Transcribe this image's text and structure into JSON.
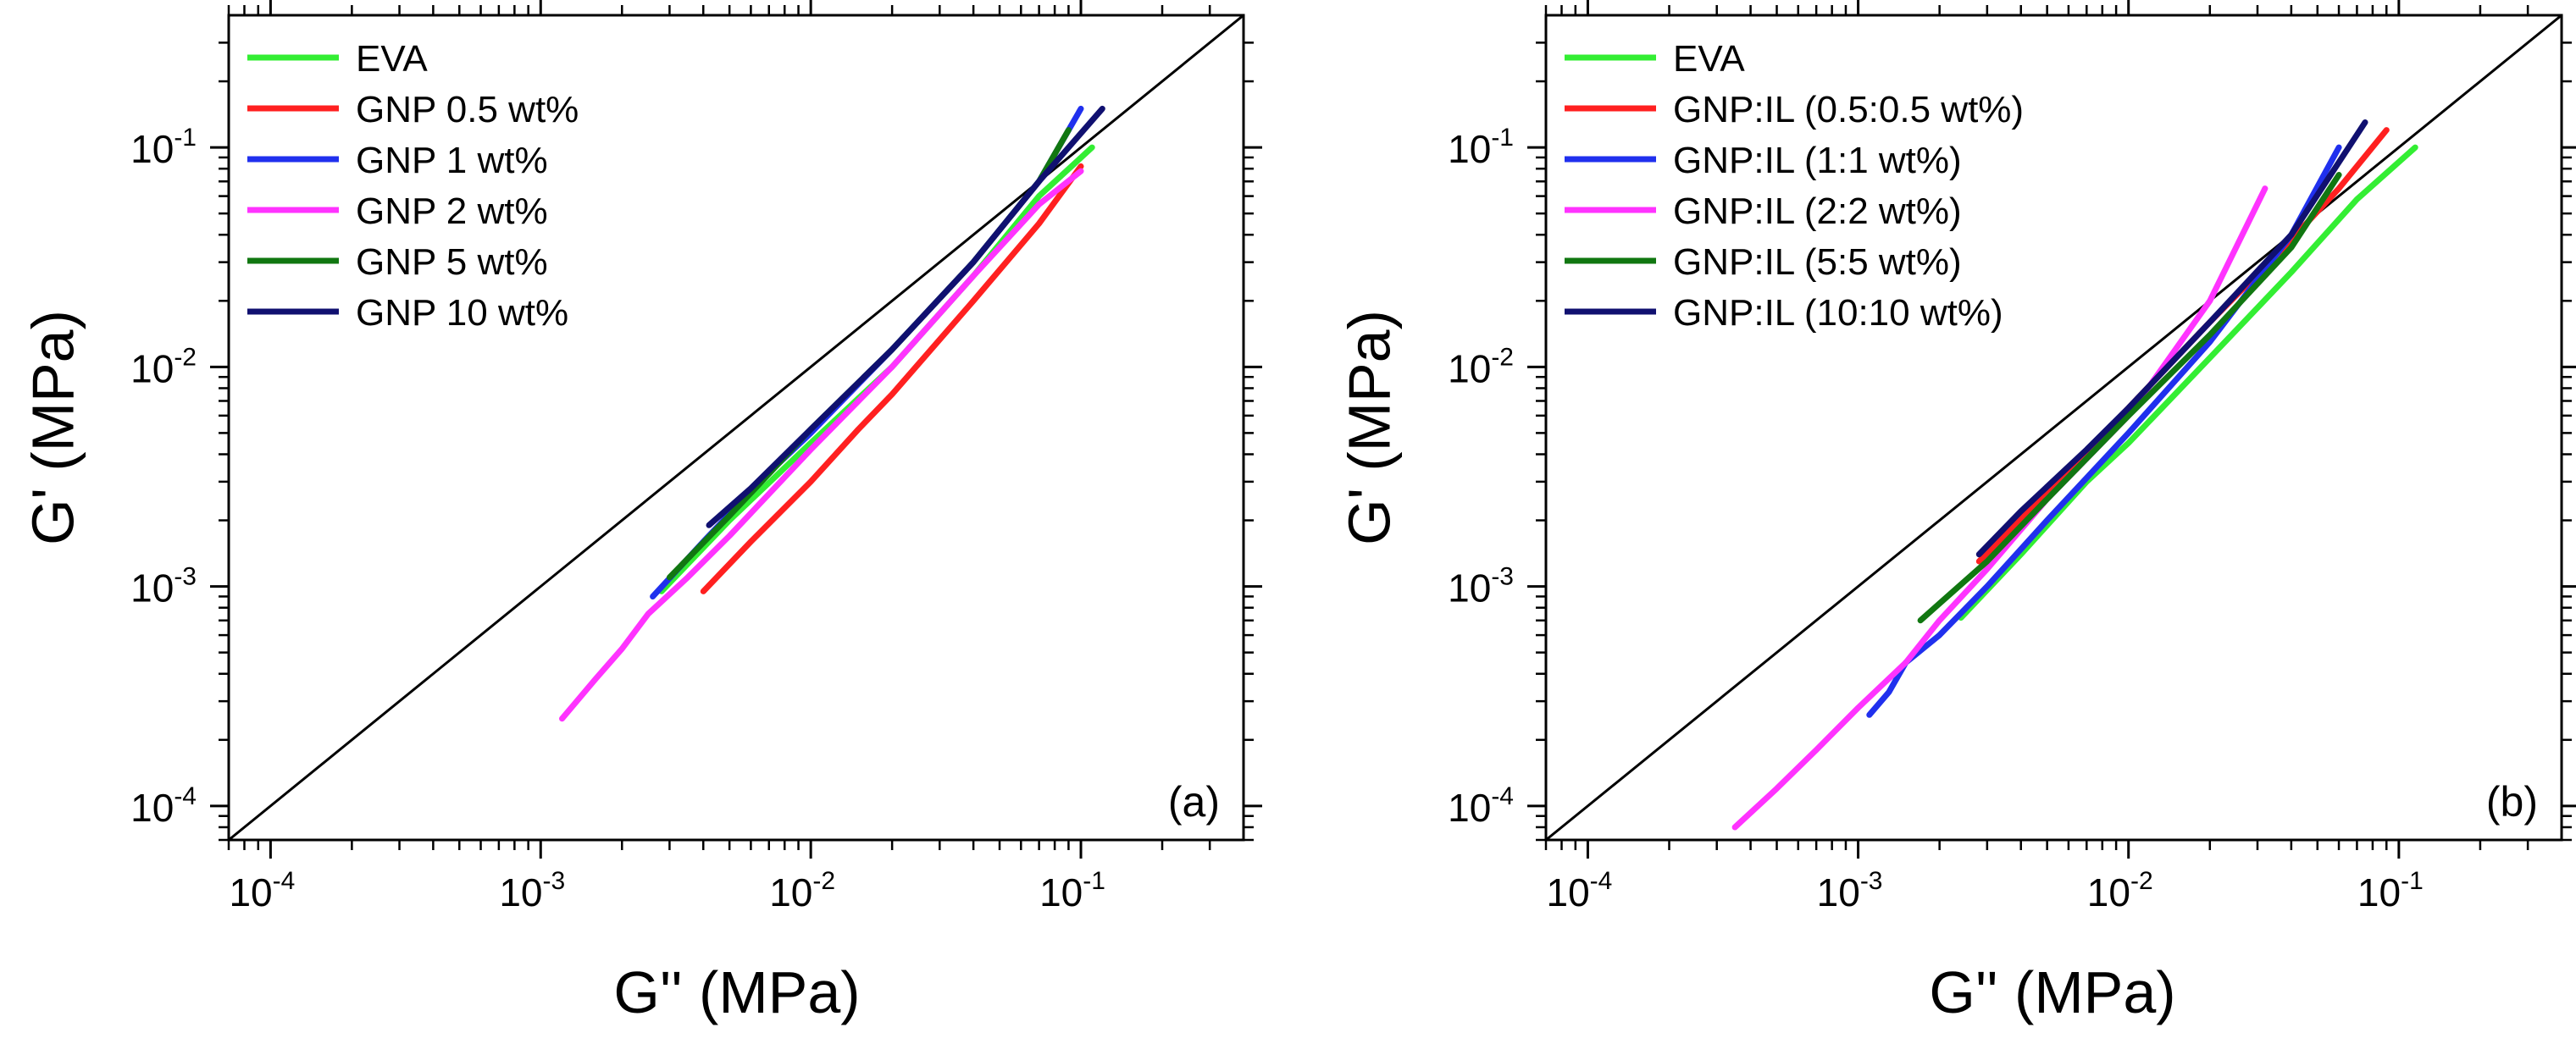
{
  "chart_data": [
    {
      "type": "line",
      "panel_label": "(a)",
      "xlabel": "G'' (MPa)",
      "ylabel": "G' (MPa)",
      "xscale": "log",
      "yscale": "log",
      "xlim": [
        7e-05,
        0.4
      ],
      "ylim": [
        7e-05,
        0.4
      ],
      "x_ticks": [
        0.0001,
        0.001,
        0.01,
        0.1
      ],
      "y_ticks": [
        0.0001,
        0.001,
        0.01,
        0.1
      ],
      "tick_labels": [
        {
          "base": "10",
          "exp": "-4"
        },
        {
          "base": "10",
          "exp": "-3"
        },
        {
          "base": "10",
          "exp": "-2"
        },
        {
          "base": "10",
          "exp": "-1"
        }
      ],
      "grid": false,
      "legend_position": "top-left",
      "reference_line": {
        "from": [
          7e-05,
          7e-05
        ],
        "to": [
          0.4,
          0.4
        ],
        "color": "#000000"
      },
      "series": [
        {
          "name": "EVA",
          "color": "#33ee33",
          "x": [
            0.0028,
            0.005,
            0.01,
            0.02,
            0.04,
            0.07,
            0.11
          ],
          "y": [
            0.00095,
            0.002,
            0.0045,
            0.01,
            0.026,
            0.06,
            0.1
          ]
        },
        {
          "name": "GNP 0.5 wt%",
          "color": "#ff2020",
          "x": [
            0.004,
            0.006,
            0.01,
            0.015,
            0.02,
            0.04,
            0.07,
            0.1
          ],
          "y": [
            0.00095,
            0.0016,
            0.003,
            0.0052,
            0.0075,
            0.02,
            0.045,
            0.082
          ]
        },
        {
          "name": "GNP 1 wt%",
          "color": "#2030ee",
          "x": [
            0.0026,
            0.004,
            0.007,
            0.01,
            0.02,
            0.04,
            0.07,
            0.1
          ],
          "y": [
            0.0009,
            0.0016,
            0.0033,
            0.005,
            0.012,
            0.03,
            0.07,
            0.15
          ]
        },
        {
          "name": "GNP 2 wt%",
          "color": "#ff33ff",
          "x": [
            0.0012,
            0.0016,
            0.002,
            0.0025,
            0.0035,
            0.005,
            0.01,
            0.02,
            0.04,
            0.07,
            0.1
          ],
          "y": [
            0.00025,
            0.00038,
            0.00052,
            0.00075,
            0.0011,
            0.0017,
            0.0042,
            0.01,
            0.026,
            0.055,
            0.078
          ]
        },
        {
          "name": "GNP 5 wt%",
          "color": "#117711",
          "x": [
            0.003,
            0.005,
            0.01,
            0.02,
            0.04,
            0.07,
            0.09
          ],
          "y": [
            0.0011,
            0.0021,
            0.0052,
            0.012,
            0.03,
            0.07,
            0.12
          ]
        },
        {
          "name": "GNP 10 wt%",
          "color": "#101070",
          "x": [
            0.0042,
            0.006,
            0.01,
            0.02,
            0.04,
            0.07,
            0.12
          ],
          "y": [
            0.0019,
            0.0028,
            0.0052,
            0.012,
            0.03,
            0.07,
            0.15
          ]
        }
      ]
    },
    {
      "type": "line",
      "panel_label": "(b)",
      "xlabel": "G'' (MPa)",
      "ylabel": "G' (MPa)",
      "xscale": "log",
      "yscale": "log",
      "xlim": [
        7e-05,
        0.4
      ],
      "ylim": [
        7e-05,
        0.4
      ],
      "x_ticks": [
        0.0001,
        0.001,
        0.01,
        0.1
      ],
      "y_ticks": [
        0.0001,
        0.001,
        0.01,
        0.1
      ],
      "tick_labels": [
        {
          "base": "10",
          "exp": "-4"
        },
        {
          "base": "10",
          "exp": "-3"
        },
        {
          "base": "10",
          "exp": "-2"
        },
        {
          "base": "10",
          "exp": "-1"
        }
      ],
      "grid": false,
      "legend_position": "top-left",
      "reference_line": {
        "from": [
          7e-05,
          7e-05
        ],
        "to": [
          0.4,
          0.4
        ],
        "color": "#000000"
      },
      "series": [
        {
          "name": "EVA",
          "color": "#33ee33",
          "x": [
            0.0024,
            0.004,
            0.007,
            0.01,
            0.02,
            0.04,
            0.07,
            0.115
          ],
          "y": [
            0.00072,
            0.0014,
            0.003,
            0.0045,
            0.011,
            0.027,
            0.058,
            0.1
          ]
        },
        {
          "name": "GNP:IL (0.5:0.5 wt%)",
          "color": "#ff2020",
          "x": [
            0.0028,
            0.005,
            0.01,
            0.02,
            0.04,
            0.06,
            0.09
          ],
          "y": [
            0.0013,
            0.0027,
            0.0065,
            0.016,
            0.038,
            0.065,
            0.12
          ]
        },
        {
          "name": "GNP:IL (1:1 wt%)",
          "color": "#2030ee",
          "x": [
            0.0011,
            0.0013,
            0.0015,
            0.002,
            0.003,
            0.005,
            0.01,
            0.02,
            0.04,
            0.06
          ],
          "y": [
            0.00026,
            0.00033,
            0.00045,
            0.0006,
            0.001,
            0.002,
            0.005,
            0.013,
            0.04,
            0.1
          ]
        },
        {
          "name": "GNP:IL (2:2 wt%)",
          "color": "#ff33ff",
          "x": [
            0.00035,
            0.0005,
            0.0007,
            0.001,
            0.0015,
            0.002,
            0.003,
            0.005,
            0.01,
            0.02,
            0.032
          ],
          "y": [
            8e-05,
            0.00012,
            0.00018,
            0.00028,
            0.00045,
            0.0007,
            0.0012,
            0.0025,
            0.006,
            0.02,
            0.065
          ]
        },
        {
          "name": "GNP:IL (5:5 wt%)",
          "color": "#117711",
          "x": [
            0.0017,
            0.003,
            0.005,
            0.01,
            0.02,
            0.04,
            0.06
          ],
          "y": [
            0.0007,
            0.0013,
            0.0025,
            0.006,
            0.014,
            0.035,
            0.075
          ]
        },
        {
          "name": "GNP:IL (10:10 wt%)",
          "color": "#101070",
          "x": [
            0.0028,
            0.004,
            0.007,
            0.01,
            0.02,
            0.04,
            0.075
          ],
          "y": [
            0.0014,
            0.0022,
            0.0042,
            0.0065,
            0.016,
            0.04,
            0.13
          ]
        }
      ]
    }
  ]
}
